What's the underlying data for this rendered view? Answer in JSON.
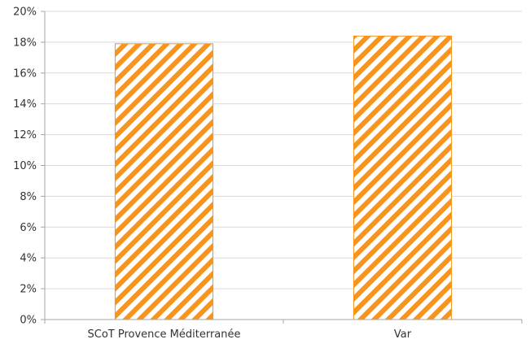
{
  "chart_data": {
    "type": "bar",
    "categories": [
      "SCoT Provence Méditerranée",
      "Var"
    ],
    "values": [
      17.9,
      18.4
    ],
    "value_unit": "%",
    "title": "",
    "xlabel": "",
    "ylabel": "",
    "ylim": [
      0,
      20
    ],
    "yticks": [
      0,
      2,
      4,
      6,
      8,
      10,
      12,
      14,
      16,
      18,
      20
    ],
    "ytick_labels": [
      "0%",
      "2%",
      "4%",
      "6%",
      "8%",
      "10%",
      "12%",
      "14%",
      "16%",
      "18%",
      "20%"
    ],
    "grid": true,
    "legend": "none",
    "bar_pattern": "diagonal-stripes",
    "colors": {
      "bar_stripe": "#f7941d",
      "bar_background": "#ffffff",
      "grid": "#d9d9d9",
      "axis": "#a6a6a6",
      "text": "#333333"
    }
  }
}
